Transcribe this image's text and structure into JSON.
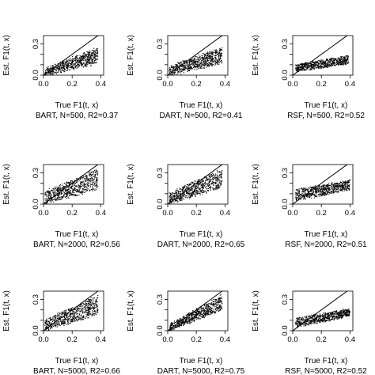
{
  "chart_data": [
    {
      "type": "scatter",
      "caption": "BART, N=500, R2=0.37",
      "xlabel": "True F1(t, x)",
      "ylabel": "Est. F1(t, x)",
      "xlim": [
        0,
        0.42
      ],
      "ylim": [
        0,
        0.38
      ],
      "xticks": [
        0.0,
        0.2,
        0.4
      ],
      "xtick_labels": [
        "0.0",
        "0.2",
        "0.4"
      ],
      "yticks": [
        0.0,
        0.1,
        0.2,
        0.3
      ],
      "ytick_labels": [
        "0.0",
        "",
        "",
        "0.3"
      ],
      "reference_line": {
        "from": [
          0,
          0
        ],
        "to": [
          0.42,
          0.42
        ]
      },
      "point_cloud": {
        "x_range": [
          0.01,
          0.38
        ],
        "y_floor": 0.0,
        "y_ceiling": 0.3,
        "y_low": [
          0.0,
          0.12
        ],
        "y_high": [
          0.06,
          0.26
        ],
        "spread": 0.1
      }
    },
    {
      "type": "scatter",
      "caption": "DART, N=500, R2=0.41",
      "xlabel": "True F1(t, x)",
      "ylabel": "Est. F1(t, x)",
      "xlim": [
        0,
        0.42
      ],
      "ylim": [
        0,
        0.38
      ],
      "xticks": [
        0.0,
        0.2,
        0.4
      ],
      "xtick_labels": [
        "0.0",
        "0.2",
        "0.4"
      ],
      "yticks": [
        0.0,
        0.1,
        0.2,
        0.3
      ],
      "ytick_labels": [
        "0.0",
        "",
        "",
        "0.3"
      ],
      "reference_line": {
        "from": [
          0,
          0
        ],
        "to": [
          0.42,
          0.42
        ]
      },
      "point_cloud": {
        "x_range": [
          0.01,
          0.38
        ],
        "y_floor": 0.0,
        "y_ceiling": 0.3,
        "y_low": [
          0.0,
          0.12
        ],
        "y_high": [
          0.08,
          0.26
        ],
        "spread": 0.1
      }
    },
    {
      "type": "scatter",
      "caption": "RSF, N=500, R2=0.52",
      "xlabel": "True F1(t, x)",
      "ylabel": "Est. F1(t, x)",
      "xlim": [
        0,
        0.42
      ],
      "ylim": [
        0,
        0.38
      ],
      "xticks": [
        0.0,
        0.2,
        0.4
      ],
      "xtick_labels": [
        "0.0",
        "0.2",
        "0.4"
      ],
      "yticks": [
        0.0,
        0.1,
        0.2,
        0.3
      ],
      "ytick_labels": [
        "0.0",
        "",
        "",
        "0.3"
      ],
      "reference_line": {
        "from": [
          0,
          0
        ],
        "to": [
          0.42,
          0.42
        ]
      },
      "point_cloud": {
        "x_range": [
          0.02,
          0.39
        ],
        "y_floor": 0.02,
        "y_ceiling": 0.2,
        "y_low": [
          0.03,
          0.11
        ],
        "y_high": [
          0.1,
          0.19
        ],
        "spread": 0.04
      }
    },
    {
      "type": "scatter",
      "caption": "BART, N=2000, R2=0.56",
      "xlabel": "True F1(t, x)",
      "ylabel": "Est. F1(t, x)",
      "xlim": [
        0,
        0.42
      ],
      "ylim": [
        0,
        0.38
      ],
      "xticks": [
        0.0,
        0.2,
        0.4
      ],
      "xtick_labels": [
        "0.0",
        "0.2",
        "0.4"
      ],
      "yticks": [
        0.0,
        0.1,
        0.2,
        0.3
      ],
      "ytick_labels": [
        "0.0",
        "",
        "",
        "0.3"
      ],
      "reference_line": {
        "from": [
          0,
          0
        ],
        "to": [
          0.42,
          0.42
        ]
      },
      "point_cloud": {
        "x_range": [
          0.01,
          0.38
        ],
        "y_floor": 0.0,
        "y_ceiling": 0.36,
        "y_low": [
          0.0,
          0.15
        ],
        "y_high": [
          0.12,
          0.33
        ],
        "spread": 0.09
      }
    },
    {
      "type": "scatter",
      "caption": "DART, N=2000, R2=0.65",
      "xlabel": "True F1(t, x)",
      "ylabel": "Est. F1(t, x)",
      "xlim": [
        0,
        0.42
      ],
      "ylim": [
        0,
        0.38
      ],
      "xticks": [
        0.0,
        0.2,
        0.4
      ],
      "xtick_labels": [
        "0.0",
        "0.2",
        "0.4"
      ],
      "yticks": [
        0.0,
        0.1,
        0.2,
        0.3
      ],
      "ytick_labels": [
        "0.0",
        "",
        "",
        "0.3"
      ],
      "reference_line": {
        "from": [
          0,
          0
        ],
        "to": [
          0.42,
          0.42
        ]
      },
      "point_cloud": {
        "x_range": [
          0.01,
          0.38
        ],
        "y_floor": 0.0,
        "y_ceiling": 0.36,
        "y_low": [
          0.0,
          0.16
        ],
        "y_high": [
          0.1,
          0.34
        ],
        "spread": 0.08
      }
    },
    {
      "type": "scatter",
      "caption": "RSF, N=2000, R2=0.51",
      "xlabel": "True F1(t, x)",
      "ylabel": "Est. F1(t, x)",
      "xlim": [
        0,
        0.42
      ],
      "ylim": [
        0,
        0.38
      ],
      "xticks": [
        0.0,
        0.2,
        0.4
      ],
      "xtick_labels": [
        "0.0",
        "0.2",
        "0.4"
      ],
      "yticks": [
        0.0,
        0.1,
        0.2,
        0.3
      ],
      "ytick_labels": [
        "0.0",
        "",
        "",
        "0.3"
      ],
      "reference_line": {
        "from": [
          0,
          0
        ],
        "to": [
          0.42,
          0.42
        ]
      },
      "point_cloud": {
        "x_range": [
          0.02,
          0.4
        ],
        "y_floor": 0.02,
        "y_ceiling": 0.24,
        "y_low": [
          0.03,
          0.14
        ],
        "y_high": [
          0.14,
          0.23
        ],
        "spread": 0.05
      }
    },
    {
      "type": "scatter",
      "caption": "BART, N=5000, R2=0.66",
      "xlabel": "True F1(t, x)",
      "ylabel": "Est. F1(t, x)",
      "xlim": [
        0,
        0.42
      ],
      "ylim": [
        0,
        0.38
      ],
      "xticks": [
        0.0,
        0.2,
        0.4
      ],
      "xtick_labels": [
        "0.0",
        "0.2",
        "0.4"
      ],
      "yticks": [
        0.0,
        0.1,
        0.2,
        0.3
      ],
      "ytick_labels": [
        "0.0",
        "",
        "",
        "0.3"
      ],
      "reference_line": {
        "from": [
          0,
          0
        ],
        "to": [
          0.42,
          0.42
        ]
      },
      "point_cloud": {
        "x_range": [
          0.01,
          0.38
        ],
        "y_floor": 0.0,
        "y_ceiling": 0.36,
        "y_low": [
          0.0,
          0.16
        ],
        "y_high": [
          0.1,
          0.34
        ],
        "spread": 0.08
      }
    },
    {
      "type": "scatter",
      "caption": "DART, N=5000, R2=0.75",
      "xlabel": "True F1(t, x)",
      "ylabel": "Est. F1(t, x)",
      "xlim": [
        0,
        0.42
      ],
      "ylim": [
        0,
        0.38
      ],
      "xticks": [
        0.0,
        0.2,
        0.4
      ],
      "xtick_labels": [
        "0.0",
        "0.2",
        "0.4"
      ],
      "yticks": [
        0.0,
        0.1,
        0.2,
        0.3
      ],
      "ytick_labels": [
        "0.0",
        "",
        "",
        "0.3"
      ],
      "reference_line": {
        "from": [
          0,
          0
        ],
        "to": [
          0.42,
          0.42
        ]
      },
      "point_cloud": {
        "x_range": [
          0.01,
          0.38
        ],
        "y_floor": 0.0,
        "y_ceiling": 0.36,
        "y_low": [
          0.0,
          0.2
        ],
        "y_high": [
          0.06,
          0.34
        ],
        "spread": 0.07
      }
    },
    {
      "type": "scatter",
      "caption": "RSF, N=5000, R2=0.52",
      "xlabel": "True F1(t, x)",
      "ylabel": "Est. F1(t, x)",
      "xlim": [
        0,
        0.42
      ],
      "ylim": [
        0,
        0.38
      ],
      "xticks": [
        0.0,
        0.2,
        0.4
      ],
      "xtick_labels": [
        "0.0",
        "0.2",
        "0.4"
      ],
      "yticks": [
        0.0,
        0.1,
        0.2,
        0.3
      ],
      "ytick_labels": [
        "0.0",
        "",
        "",
        "0.3"
      ],
      "reference_line": {
        "from": [
          0,
          0
        ],
        "to": [
          0.42,
          0.42
        ]
      },
      "point_cloud": {
        "x_range": [
          0.02,
          0.4
        ],
        "y_floor": 0.02,
        "y_ceiling": 0.22,
        "y_low": [
          0.03,
          0.14
        ],
        "y_high": [
          0.12,
          0.21
        ],
        "spread": 0.05
      }
    }
  ]
}
